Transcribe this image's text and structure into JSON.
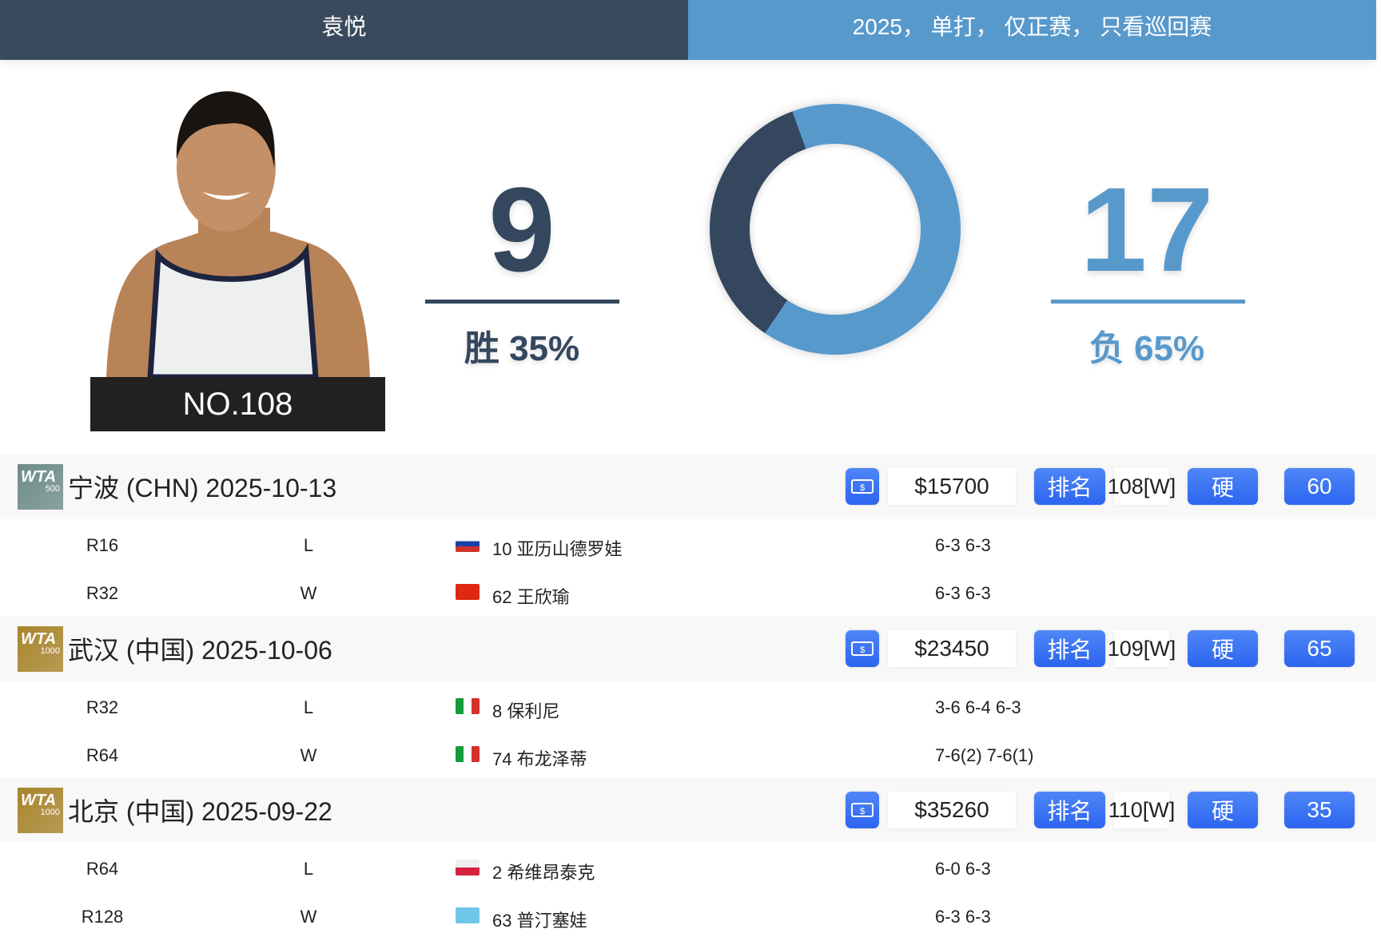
{
  "header": {
    "player_name": "袁悦",
    "filters": "2025， 单打， 仅正赛， 只看巡回赛"
  },
  "player": {
    "rank_label": "NO.108"
  },
  "summary": {
    "wins": "9",
    "win_label": "胜 35%",
    "losses": "17",
    "loss_label": "负 65%",
    "win_pct": 35,
    "loss_pct": 65,
    "win_color": "#34475e",
    "loss_color": "#5899cc"
  },
  "tournaments": [
    {
      "logo": "WTA",
      "level": "500",
      "logo_color": "#6e8c8a",
      "title": "宁波 (CHN) 2025-10-13",
      "prize": "$15700",
      "rank_button": "排名",
      "rank": "108[W]",
      "surface": "硬",
      "points": "60",
      "matches": [
        {
          "round": "R16",
          "result": "L",
          "flag": "russia-flag",
          "opponent": "10 亚历山德罗娃",
          "score": "6-3 6-3"
        },
        {
          "round": "R32",
          "result": "W",
          "flag": "china-flag",
          "opponent": "62 王欣瑜",
          "score": "6-3 6-3"
        }
      ]
    },
    {
      "logo": "WTA",
      "level": "1000",
      "logo_color": "#a8842c",
      "title": "武汉 (中国) 2025-10-06",
      "prize": "$23450",
      "rank_button": "排名",
      "rank": "109[W]",
      "surface": "硬",
      "points": "65",
      "matches": [
        {
          "round": "R32",
          "result": "L",
          "flag": "italy-flag",
          "opponent": "8 保利尼",
          "score": "3-6 6-4 6-3"
        },
        {
          "round": "R64",
          "result": "W",
          "flag": "italy-flag",
          "opponent": "74 布龙泽蒂",
          "score": "7-6(2) 7-6(1)"
        }
      ]
    },
    {
      "logo": "WTA",
      "level": "1000",
      "logo_color": "#a8842c",
      "title": "北京 (中国) 2025-09-22",
      "prize": "$35260",
      "rank_button": "排名",
      "rank": "110[W]",
      "surface": "硬",
      "points": "35",
      "matches": [
        {
          "round": "R64",
          "result": "L",
          "flag": "poland-flag",
          "opponent": "2 希维昂泰克",
          "score": "6-0 6-3"
        },
        {
          "round": "R128",
          "result": "W",
          "flag": "kazakhstan-flag",
          "opponent": "63 普汀塞娃",
          "score": "6-3 6-3"
        }
      ]
    }
  ]
}
